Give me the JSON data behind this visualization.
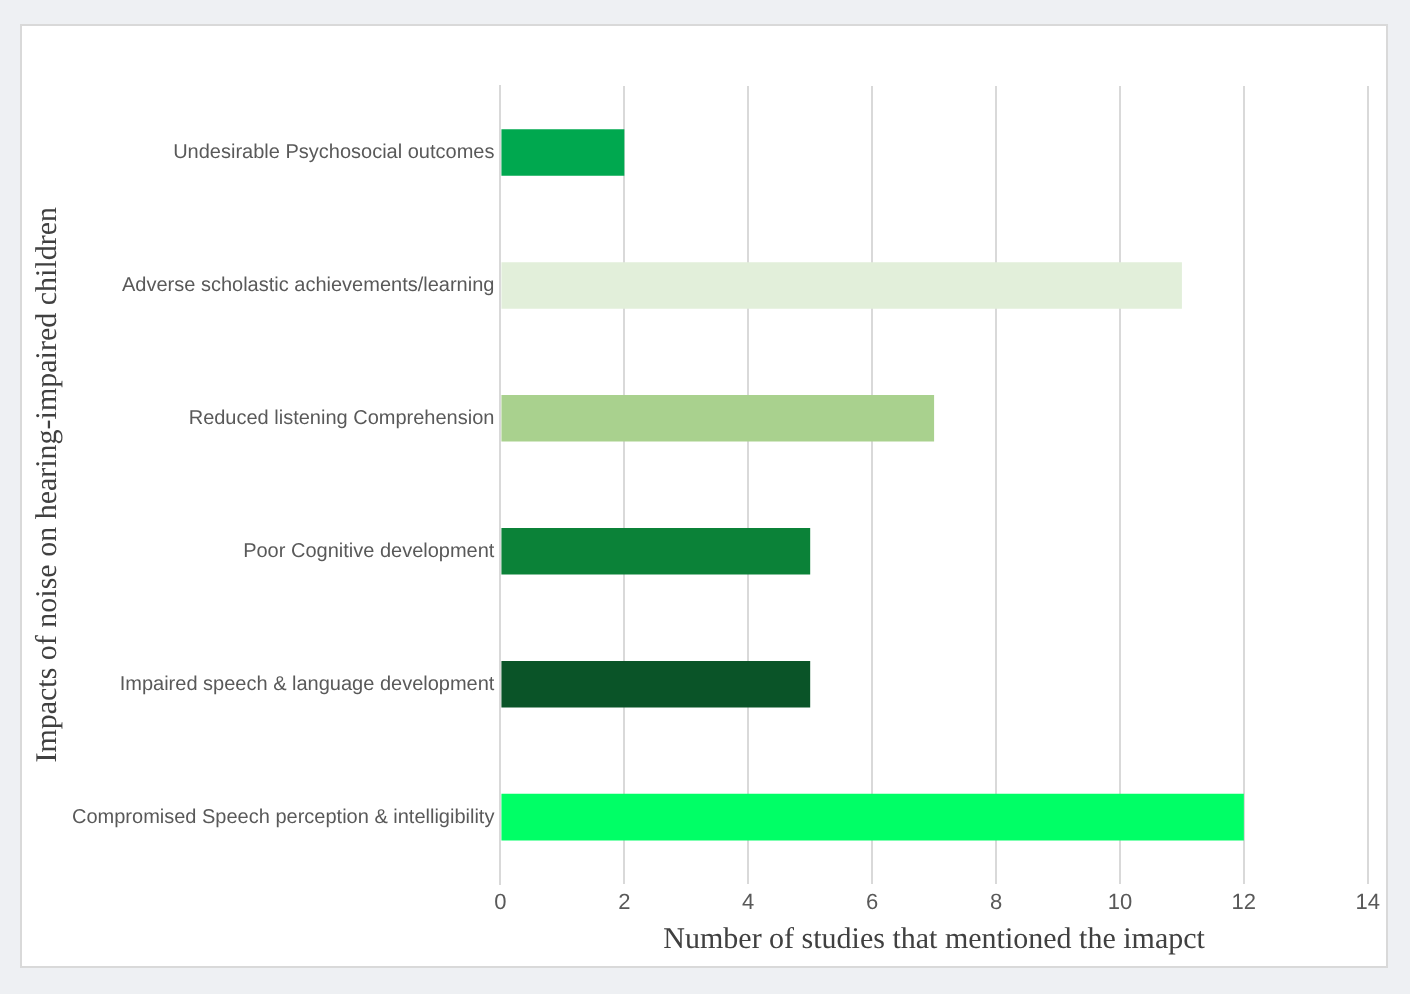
{
  "chart_data": {
    "type": "bar",
    "orientation": "horizontal",
    "xlabel": "Number of studies that mentioned the imapct",
    "ylabel": "Impacts of noise on hearing-impaired children",
    "categories": [
      "Undesirable Psychosocial outcomes",
      "Adverse scholastic achievements/learning",
      "Reduced listening Comprehension",
      "Poor Cognitive development",
      "Impaired speech & language development",
      "Compromised Speech perception & intelligibility"
    ],
    "values": [
      2,
      11,
      7,
      5,
      5,
      12
    ],
    "colors": [
      "#00a84f",
      "#e2efda",
      "#a9d18e",
      "#0b8238",
      "#0a5428",
      "#00ff66"
    ],
    "xlim": [
      0,
      14
    ],
    "xticks": [
      0,
      2,
      4,
      6,
      8,
      10,
      12,
      14
    ],
    "grid": "x",
    "legend": false
  }
}
